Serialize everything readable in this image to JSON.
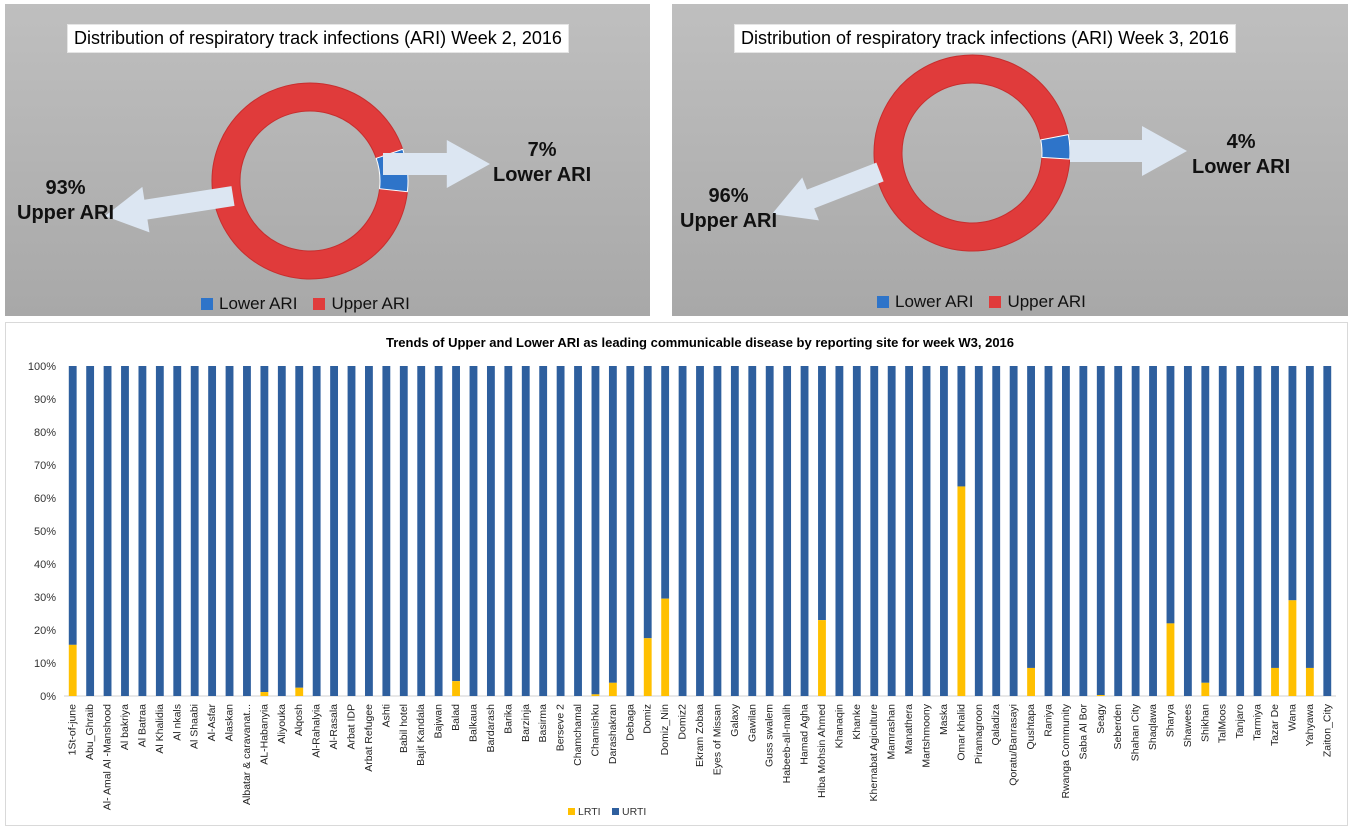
{
  "colors": {
    "upper": "#e03b3b",
    "lower": "#2e74c9",
    "lrti": "#ffc000",
    "urti": "#2e5f9e",
    "arrow": "#dce6f2"
  },
  "donut1": {
    "title": "Distribution of respiratory track infections (ARI) Week 2, 2016",
    "upper_pct": "93%",
    "upper_label": "Upper ARI",
    "lower_pct": "7%",
    "lower_label": "Lower ARI",
    "legend": [
      "Lower ARI",
      "Upper ARI"
    ]
  },
  "donut2": {
    "title": "Distribution of respiratory track infections (ARI) Week 3, 2016",
    "upper_pct": "96%",
    "upper_label": "Upper ARI",
    "lower_pct": "4%",
    "lower_label": "Lower ARI",
    "legend": [
      "Lower ARI",
      "Upper ARI"
    ]
  },
  "bar": {
    "title": "Trends of Upper and Lower ARI as leading communicable disease by reporting site for week W3, 2016",
    "legend": [
      "LRTI",
      "URTI"
    ]
  },
  "chart_data": [
    {
      "type": "pie",
      "title": "Distribution of respiratory track infections (ARI) Week 2, 2016",
      "labels": [
        "Lower ARI",
        "Upper ARI"
      ],
      "values": [
        7,
        93
      ],
      "legend": "bottom"
    },
    {
      "type": "pie",
      "title": "Distribution of respiratory track infections (ARI) Week 3, 2016",
      "labels": [
        "Lower ARI",
        "Upper ARI"
      ],
      "values": [
        4,
        96
      ],
      "legend": "bottom"
    },
    {
      "type": "bar",
      "stacked": true,
      "title": "Trends of Upper and Lower ARI as leading communicable disease by reporting site for week W3, 2016",
      "categories": [
        "1St-of-june",
        "Abu_Ghraib",
        "Al- Amal Al -Manshood",
        "Al bakriya",
        "Al Batraa",
        "Al Khalidia",
        "Al nkals",
        "Al Shaabi",
        "Al-Asfar",
        "Alaskan",
        "Albatar & caravanat...",
        "AL-Habanyia",
        "Aliyouka",
        "Alqosh",
        "Al-Rahalyia",
        "Al-Rasala",
        "Arbat IDP",
        "Arbat Refugee",
        "Ashti",
        "Babil hotel",
        "Bajit Kandala",
        "Bajwan",
        "Balad",
        "Balkaua",
        "Bardarash",
        "Barika",
        "Barzinja",
        "Basirma",
        "Berseve 2",
        "Chamchamal",
        "Chamishku",
        "Darashakran",
        "Debaga",
        "Domiz",
        "Domiz_Nin",
        "Domiz2",
        "Ekram Zobaa",
        "Eyes of Missan",
        "Galaxy",
        "Gawilan",
        "Guss swalem",
        "Habeeb-all-malih",
        "Hamad Agha",
        "Hiba Mohsin Ahmed",
        "Khanaqin",
        "Khanke",
        "Khernabat Agiculture",
        "Mamrashan",
        "Manathera",
        "Martshmoony",
        "Maska",
        "Omar khalid",
        "Piramagroon",
        "Qaladiza",
        "Qoratu/Banrasayi",
        "Qushtapa",
        "Raniya",
        "Rwanga Community",
        "Saba Al Bor",
        "Seagy",
        "Seberden",
        "Shahan City",
        "Shaqlawa",
        "Sharya",
        "Shawees",
        "Shikhan",
        "TalMoos",
        "Tanjaro",
        "Tarmiya",
        "Tazar De",
        "Wana",
        "Yahyawa",
        "Zaiton_City"
      ],
      "series": [
        {
          "name": "LRTI",
          "values": [
            15.5,
            0,
            0,
            0,
            0,
            0,
            0,
            0,
            0,
            0,
            0,
            1.2,
            0,
            2.5,
            0,
            0,
            0,
            0,
            0,
            0,
            0,
            0,
            4.5,
            0,
            0,
            0,
            0,
            0,
            0,
            0,
            0.5,
            4,
            0,
            17.5,
            29.5,
            0,
            0,
            0,
            0,
            0,
            0,
            0,
            0,
            23,
            0,
            0,
            0,
            0,
            0,
            0,
            0,
            63.5,
            0,
            0,
            0,
            8.5,
            0,
            0,
            0,
            0.3,
            0,
            0,
            0,
            22,
            0,
            4,
            0,
            0,
            0,
            8.5,
            29,
            8.5,
            0
          ]
        },
        {
          "name": "URTI",
          "values": [
            84.5,
            100,
            100,
            100,
            100,
            100,
            100,
            100,
            100,
            100,
            100,
            98.8,
            100,
            97.5,
            100,
            100,
            100,
            100,
            100,
            100,
            100,
            100,
            95.5,
            100,
            100,
            100,
            100,
            100,
            100,
            100,
            99.5,
            96,
            100,
            82.5,
            70.5,
            100,
            100,
            100,
            100,
            100,
            100,
            100,
            100,
            77,
            100,
            100,
            100,
            100,
            100,
            100,
            100,
            36.5,
            100,
            100,
            100,
            91.5,
            100,
            100,
            100,
            99.7,
            100,
            100,
            100,
            78,
            100,
            96,
            100,
            100,
            100,
            91.5,
            71,
            91.5,
            100
          ]
        }
      ],
      "yticks": [
        "0%",
        "10%",
        "20%",
        "30%",
        "40%",
        "50%",
        "60%",
        "70%",
        "80%",
        "90%",
        "100%"
      ],
      "ylim": [
        0,
        100
      ],
      "grid": false,
      "legend": "bottom"
    }
  ]
}
